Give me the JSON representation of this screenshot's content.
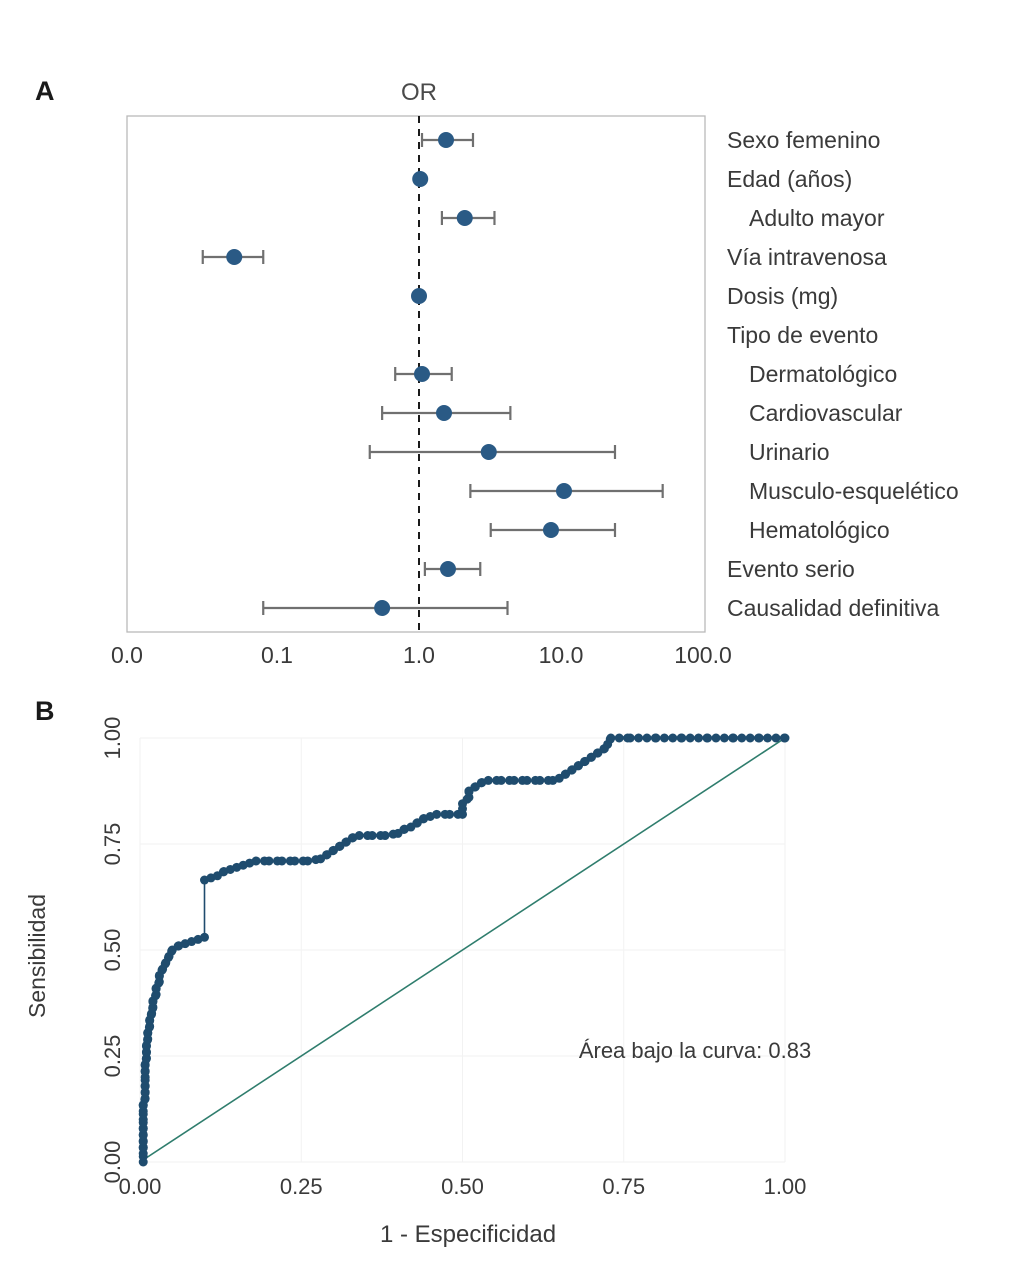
{
  "figure": {
    "panelA_label": "A",
    "panelB_label": "B"
  },
  "colors": {
    "text": "#3a3a3a",
    "panel_letter": "#1a1a1a",
    "forest_point": "#2a5a85",
    "ci_bar": "#707070",
    "box_border": "#b9b9b9",
    "reference_dash": "#1a1a1a",
    "roc_dot": "#1f4c6e",
    "roc_line": "#1f4c6e",
    "diagonal": "#2f7d6d",
    "grid": "#f2f2f2"
  },
  "chart_data": [
    {
      "type": "scatter",
      "subtype": "forest-plot",
      "name": "odds-ratio-forest-plot",
      "title": "OR",
      "x_scale": "log",
      "reference_line": 1.0,
      "x_tick_values": [
        0,
        0.1,
        1,
        10,
        100
      ],
      "x_tick_labels": [
        "0.0",
        "0.1",
        "1.0",
        "10.0",
        "100.0"
      ],
      "rows": [
        {
          "label": "Sexo femenino",
          "indent": false,
          "or": 1.55,
          "ci_low": 1.05,
          "ci_high": 2.4
        },
        {
          "label": "Edad (años)",
          "indent": false,
          "or": 1.02,
          "ci_low": 0.99,
          "ci_high": 1.06
        },
        {
          "label": "Adulto mayor",
          "indent": true,
          "or": 2.1,
          "ci_low": 1.45,
          "ci_high": 3.4
        },
        {
          "label": "Vía intravenosa",
          "indent": false,
          "or": 0.05,
          "ci_low": 0.03,
          "ci_high": 0.08
        },
        {
          "label": "Dosis (mg)",
          "indent": false,
          "or": 1.0,
          "ci_low": 0.99,
          "ci_high": 1.02
        },
        {
          "label": "Tipo de evento",
          "indent": false,
          "or": null,
          "ci_low": null,
          "ci_high": null
        },
        {
          "label": "Dermatológico",
          "indent": true,
          "or": 1.05,
          "ci_low": 0.68,
          "ci_high": 1.7
        },
        {
          "label": "Cardiovascular",
          "indent": true,
          "or": 1.5,
          "ci_low": 0.55,
          "ci_high": 4.4
        },
        {
          "label": "Urinario",
          "indent": true,
          "or": 3.1,
          "ci_low": 0.45,
          "ci_high": 24
        },
        {
          "label": "Musculo-esquelético",
          "indent": true,
          "or": 10.5,
          "ci_low": 2.3,
          "ci_high": 52
        },
        {
          "label": "Hematológico",
          "indent": true,
          "or": 8.5,
          "ci_low": 3.2,
          "ci_high": 24
        },
        {
          "label": "Evento serio",
          "indent": false,
          "or": 1.6,
          "ci_low": 1.1,
          "ci_high": 2.7
        },
        {
          "label": "Causalidad definitiva",
          "indent": false,
          "or": 0.55,
          "ci_low": 0.08,
          "ci_high": 4.2
        }
      ]
    },
    {
      "type": "line",
      "subtype": "roc-curve",
      "name": "roc-curve",
      "xlabel": "1 - Especificidad",
      "ylabel": "Sensibilidad",
      "annotation": "Área bajo la curva: 0.83",
      "auc_value": 0.83,
      "xlim": [
        0,
        1
      ],
      "ylim": [
        0,
        1
      ],
      "tick_values": [
        0,
        0.25,
        0.5,
        0.75,
        1.0
      ],
      "x_tick_labels": [
        "0.00",
        "0.25",
        "0.50",
        "0.75",
        "1.00"
      ],
      "y_tick_labels": [
        "0.00",
        "0.25",
        "0.50",
        "0.75",
        "1.00"
      ],
      "diagonal_reference": true,
      "points": [
        [
          0.005,
          0.0
        ],
        [
          0.005,
          0.02
        ],
        [
          0.005,
          0.035
        ],
        [
          0.005,
          0.05
        ],
        [
          0.005,
          0.065
        ],
        [
          0.005,
          0.08
        ],
        [
          0.005,
          0.1
        ],
        [
          0.005,
          0.12
        ],
        [
          0.005,
          0.135
        ],
        [
          0.008,
          0.15
        ],
        [
          0.008,
          0.165
        ],
        [
          0.008,
          0.18
        ],
        [
          0.008,
          0.2
        ],
        [
          0.008,
          0.215
        ],
        [
          0.008,
          0.23
        ],
        [
          0.01,
          0.245
        ],
        [
          0.01,
          0.26
        ],
        [
          0.01,
          0.275
        ],
        [
          0.012,
          0.29
        ],
        [
          0.012,
          0.305
        ],
        [
          0.015,
          0.32
        ],
        [
          0.015,
          0.335
        ],
        [
          0.018,
          0.35
        ],
        [
          0.02,
          0.365
        ],
        [
          0.02,
          0.38
        ],
        [
          0.025,
          0.395
        ],
        [
          0.025,
          0.41
        ],
        [
          0.03,
          0.425
        ],
        [
          0.03,
          0.44
        ],
        [
          0.035,
          0.455
        ],
        [
          0.04,
          0.47
        ],
        [
          0.045,
          0.485
        ],
        [
          0.05,
          0.5
        ],
        [
          0.06,
          0.51
        ],
        [
          0.07,
          0.515
        ],
        [
          0.08,
          0.52
        ],
        [
          0.09,
          0.525
        ],
        [
          0.1,
          0.53
        ],
        [
          0.1,
          0.665
        ],
        [
          0.11,
          0.67
        ],
        [
          0.12,
          0.675
        ],
        [
          0.13,
          0.685
        ],
        [
          0.14,
          0.69
        ],
        [
          0.15,
          0.695
        ],
        [
          0.16,
          0.7
        ],
        [
          0.17,
          0.705
        ],
        [
          0.18,
          0.71
        ],
        [
          0.2,
          0.71
        ],
        [
          0.22,
          0.71
        ],
        [
          0.24,
          0.71
        ],
        [
          0.26,
          0.71
        ],
        [
          0.28,
          0.715
        ],
        [
          0.29,
          0.725
        ],
        [
          0.3,
          0.735
        ],
        [
          0.31,
          0.745
        ],
        [
          0.32,
          0.755
        ],
        [
          0.33,
          0.765
        ],
        [
          0.34,
          0.77
        ],
        [
          0.36,
          0.77
        ],
        [
          0.38,
          0.77
        ],
        [
          0.4,
          0.775
        ],
        [
          0.41,
          0.785
        ],
        [
          0.42,
          0.79
        ],
        [
          0.43,
          0.8
        ],
        [
          0.44,
          0.81
        ],
        [
          0.45,
          0.815
        ],
        [
          0.46,
          0.82
        ],
        [
          0.48,
          0.82
        ],
        [
          0.5,
          0.82
        ],
        [
          0.5,
          0.845
        ],
        [
          0.51,
          0.86
        ],
        [
          0.51,
          0.875
        ],
        [
          0.52,
          0.885
        ],
        [
          0.53,
          0.895
        ],
        [
          0.54,
          0.9
        ],
        [
          0.56,
          0.9
        ],
        [
          0.58,
          0.9
        ],
        [
          0.6,
          0.9
        ],
        [
          0.62,
          0.9
        ],
        [
          0.64,
          0.9
        ],
        [
          0.65,
          0.905
        ],
        [
          0.66,
          0.915
        ],
        [
          0.67,
          0.925
        ],
        [
          0.68,
          0.935
        ],
        [
          0.69,
          0.945
        ],
        [
          0.7,
          0.955
        ],
        [
          0.71,
          0.965
        ],
        [
          0.72,
          0.975
        ],
        [
          0.725,
          0.985
        ],
        [
          0.73,
          1.0
        ],
        [
          0.76,
          1.0
        ],
        [
          0.8,
          1.0
        ],
        [
          0.84,
          1.0
        ],
        [
          0.88,
          1.0
        ],
        [
          0.92,
          1.0
        ],
        [
          0.96,
          1.0
        ],
        [
          1.0,
          1.0
        ]
      ]
    }
  ]
}
